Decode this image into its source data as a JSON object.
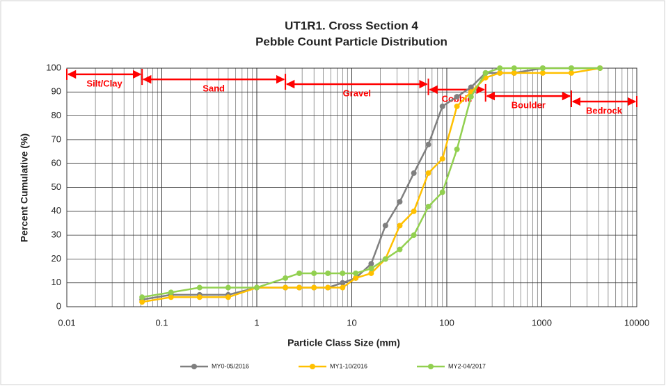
{
  "chart_data": {
    "type": "line",
    "title": "UT1R1. Cross Section 4",
    "subtitle": "Pebble Count Particle Distribution",
    "x_label": "Particle Class Size (mm)",
    "y_label": "Percent Cumulative (%)",
    "x_scale": "log",
    "grid": true,
    "legend": "bottom",
    "x": [
      0.062,
      0.125,
      0.25,
      0.5,
      1,
      2,
      2.8,
      4,
      5.6,
      8,
      11,
      16,
      22.6,
      32,
      45,
      64,
      90,
      128,
      180,
      256,
      362,
      512,
      1024,
      2048,
      4096
    ],
    "series": [
      {
        "name": "MY0-05/2016",
        "color": "#7f7f7f",
        "values": [
          3,
          5,
          5,
          5,
          8,
          8,
          8,
          8,
          8,
          10,
          12,
          18,
          34,
          44,
          56,
          68,
          84,
          88,
          92,
          98,
          98,
          98,
          100,
          100,
          100
        ]
      },
      {
        "name": "MY1-10/2016",
        "color": "#ffc000",
        "values": [
          2,
          4,
          4,
          4,
          8,
          8,
          8,
          8,
          8,
          8,
          12,
          14,
          20,
          34,
          40,
          56,
          62,
          84,
          90,
          96,
          98,
          98,
          98,
          98,
          100
        ]
      },
      {
        "name": "MY2-04/2017",
        "color": "#92d050",
        "values": [
          4,
          6,
          8,
          8,
          8,
          12,
          14,
          14,
          14,
          14,
          14,
          16,
          20,
          24,
          30,
          42,
          48,
          66,
          88,
          98,
          100,
          100,
          100,
          100,
          100
        ]
      }
    ],
    "xlim": [
      0.01,
      10000
    ],
    "xticks": [
      0.01,
      0.1,
      1,
      10,
      100,
      1000,
      10000
    ],
    "ylim": [
      0,
      100
    ],
    "yticks": [
      0,
      10,
      20,
      30,
      40,
      50,
      60,
      70,
      80,
      90,
      100
    ],
    "annotations": [
      {
        "label": "Silt/Clay",
        "x": [
          0.01,
          0.062
        ],
        "y": 97.4,
        "color": "#ff0000"
      },
      {
        "label": "Sand",
        "x": [
          0.062,
          2
        ],
        "y": 95.3,
        "color": "#ff0000"
      },
      {
        "label": "Gravel",
        "x": [
          2,
          64
        ],
        "y": 93.3,
        "color": "#ff0000"
      },
      {
        "label": "Cobble",
        "x": [
          64,
          256
        ],
        "y": 91,
        "color": "#ff0000"
      },
      {
        "label": "Boulder",
        "x": [
          256,
          2048
        ],
        "y": 88.3,
        "color": "#ff0000"
      },
      {
        "label": "Bedrock",
        "x": [
          2048,
          10000
        ],
        "y": 86,
        "color": "#ff0000"
      }
    ]
  }
}
